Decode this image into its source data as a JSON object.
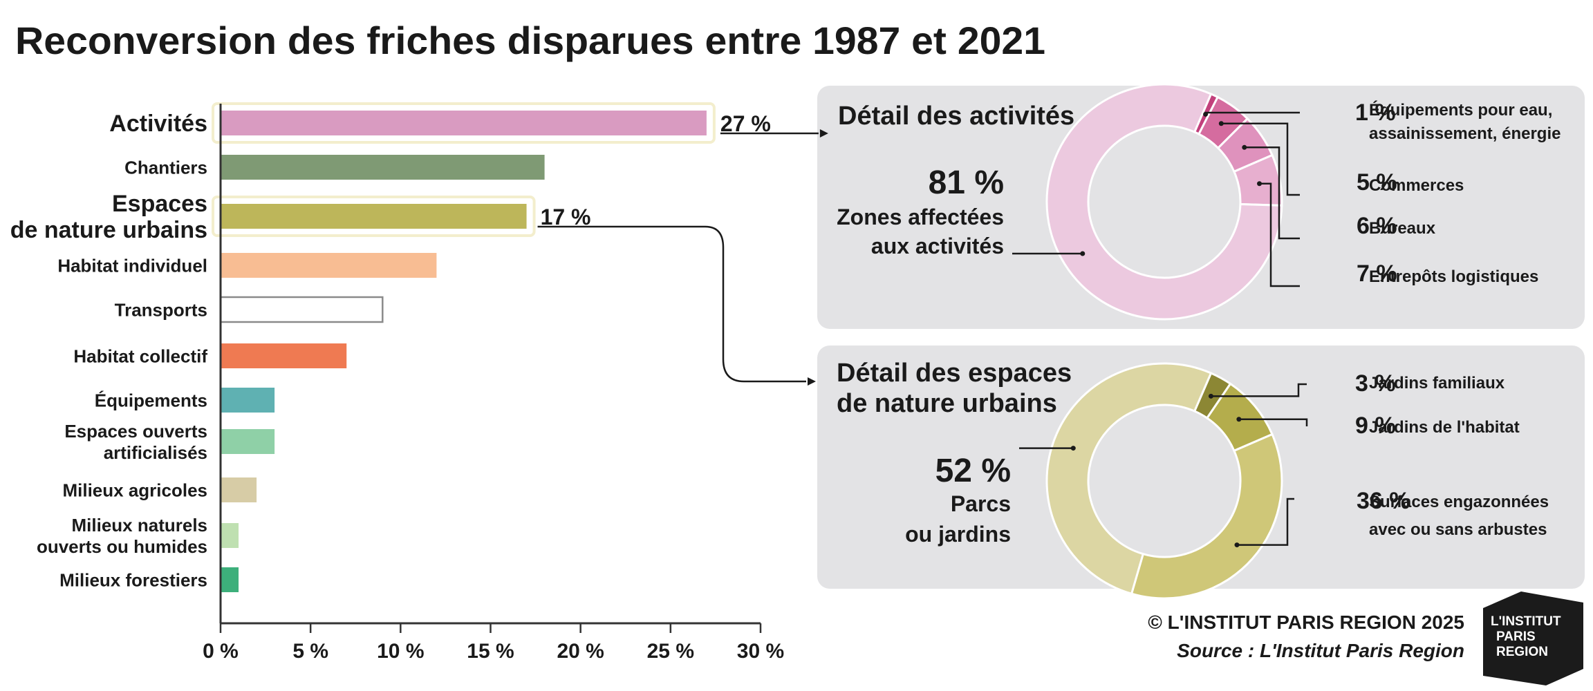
{
  "title": "Reconversion des friches disparues entre 1987 et 2021",
  "chart_data": [
    {
      "type": "bar",
      "orientation": "horizontal",
      "title": "",
      "categories": [
        "Activités",
        "Chantiers",
        "Espaces de nature urbains",
        "Habitat individuel",
        "Transports",
        "Habitat collectif",
        "Équipements",
        "Espaces ouverts artificialisés",
        "Milieux agricoles",
        "Milieux naturels ouverts ou humides",
        "Milieux forestiers"
      ],
      "category_lines": [
        [
          "Activités"
        ],
        [
          "Chantiers"
        ],
        [
          "Espaces",
          "de nature urbains"
        ],
        [
          "Habitat individuel"
        ],
        [
          "Transports"
        ],
        [
          "Habitat collectif"
        ],
        [
          "Équipements"
        ],
        [
          "Espaces ouverts",
          "artificialisés"
        ],
        [
          "Milieux agricoles"
        ],
        [
          "Milieux naturels",
          "ouverts ou humides"
        ],
        [
          "Milieux forestiers"
        ]
      ],
      "values": [
        27,
        18,
        17,
        12,
        9,
        7,
        3,
        3,
        2,
        1,
        1
      ],
      "colors": [
        "#d99bc1",
        "#7f9a74",
        "#bdb65a",
        "#f8bd93",
        "#ffffff",
        "#ef7a52",
        "#5fb1b2",
        "#8fd0a7",
        "#d7cca6",
        "#bfe0b1",
        "#3daf7b"
      ],
      "highlighted": [
        "Activités",
        "Espaces de nature urbains"
      ],
      "data_labels": {
        "Activités": "27 %",
        "Espaces de nature urbains": "17 %"
      },
      "xlim": [
        0,
        30
      ],
      "x_ticks": [
        0,
        5,
        10,
        15,
        20,
        25,
        30
      ],
      "x_tick_labels": [
        "0 %",
        "5 %",
        "10 %",
        "15 %",
        "20 %",
        "25 %",
        "30 %"
      ],
      "xlabel": "",
      "ylabel": "",
      "grid": false
    },
    {
      "type": "pie",
      "variant": "donut",
      "title": "Détail des activités",
      "categories": [
        "Zones affectées aux activités",
        "Équipements pour eau, assainissement, énergie",
        "Commerces",
        "Bureaux",
        "Entrepôts logistiques"
      ],
      "values": [
        81,
        1,
        5,
        6,
        7
      ],
      "value_labels": [
        "81 %",
        "1 %",
        "5 %",
        "6 %",
        "7 %"
      ],
      "label_lines": [
        [
          "Zones affectées",
          "aux activités"
        ],
        [
          "Équipements pour eau,",
          "assainissement, énergie"
        ],
        [
          "Commerces"
        ],
        [
          "Bureaux"
        ],
        [
          "Entrepôts logistiques"
        ]
      ],
      "colors": [
        "#ecc9df",
        "#c2407c",
        "#d56c9f",
        "#df92bd",
        "#e7afcf"
      ]
    },
    {
      "type": "pie",
      "variant": "donut",
      "title": "Détail des espaces de nature urbains",
      "title_lines": [
        "Détail des espaces",
        "de nature urbains"
      ],
      "categories": [
        "Parcs ou jardins",
        "Jardins familiaux",
        "Jardins de l'habitat",
        "Surfaces engazonnées avec ou sans arbustes"
      ],
      "values": [
        52,
        3,
        9,
        36
      ],
      "value_labels": [
        "52 %",
        "3 %",
        "9 %",
        "36 %"
      ],
      "label_lines": [
        [
          "Parcs",
          "ou jardins"
        ],
        [
          "Jardins familiaux"
        ],
        [
          "Jardins de l'habitat"
        ],
        [
          "Surfaces engazonnées",
          "avec ou sans arbustes"
        ]
      ],
      "colors": [
        "#dcd6a3",
        "#8c8734",
        "#b4ad4c",
        "#cfc778"
      ]
    }
  ],
  "footer": {
    "copyright": "© L'INSTITUT PARIS REGION 2025",
    "source": "Source : L'Institut Paris Region",
    "logo_lines": [
      "L'INSTITUT",
      "PARIS",
      "REGION"
    ]
  }
}
